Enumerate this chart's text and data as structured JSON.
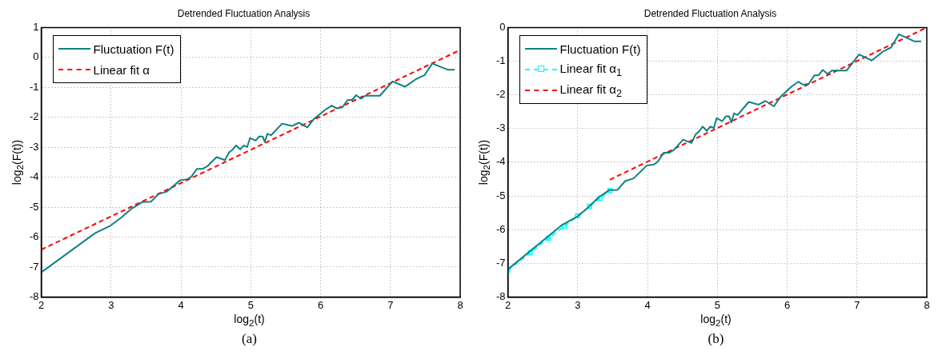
{
  "chart_data": [
    {
      "type": "line",
      "title": "Detrended Fluctuation Analysis",
      "xlabel": "log$_{2}$(t)",
      "ylabel": "log$_{2}$(F(t))",
      "xlim": [
        2,
        8
      ],
      "xticks": [
        2,
        3,
        4,
        5,
        6,
        7,
        8
      ],
      "ylim": [
        -8,
        1
      ],
      "yticks": [
        -8,
        -7,
        -6,
        -5,
        -4,
        -3,
        -2,
        -1,
        0,
        1
      ],
      "grid": true,
      "legend": "top left",
      "annotations": [
        "(a)"
      ],
      "series": [
        {
          "name": "Fluctuation F(t)",
          "color": "#108080",
          "line_style": "solid",
          "x": [
            2,
            2.77,
            2.99,
            3.14,
            3.3,
            3.45,
            3.57,
            3.68,
            3.8,
            3.99,
            4.09,
            4.15,
            4.23,
            4.31,
            4.38,
            4.51,
            4.63,
            4.69,
            4.74,
            4.79,
            4.85,
            4.9,
            4.95,
            4.99,
            5.07,
            5.12,
            5.17,
            5.2,
            5.24,
            5.29,
            5.45,
            5.59,
            5.69,
            5.81,
            5.9,
            6.06,
            6.16,
            6.23,
            6.31,
            6.39,
            6.45,
            6.51,
            6.58,
            6.64,
            6.85,
            7.03,
            7.21,
            7.37,
            7.49,
            7.6,
            7.82,
            7.92
          ],
          "values": [
            -7.18,
            -5.87,
            -5.62,
            -5.36,
            -5.04,
            -4.83,
            -4.82,
            -4.56,
            -4.48,
            -4.1,
            -4.07,
            -3.98,
            -3.72,
            -3.72,
            -3.63,
            -3.33,
            -3.43,
            -3.17,
            -3.08,
            -2.94,
            -3.07,
            -2.94,
            -2.99,
            -2.69,
            -2.78,
            -2.64,
            -2.64,
            -2.82,
            -2.55,
            -2.6,
            -2.21,
            -2.29,
            -2.18,
            -2.34,
            -2.07,
            -1.76,
            -1.61,
            -1.7,
            -1.67,
            -1.42,
            -1.42,
            -1.26,
            -1.38,
            -1.28,
            -1.28,
            -0.8,
            -0.98,
            -0.72,
            -0.59,
            -0.2,
            -0.41,
            -0.41
          ]
        },
        {
          "name": "Linear fit α",
          "color": "#ff0000",
          "line_style": "dashed",
          "x": [
            2,
            8
          ],
          "values": [
            -6.42,
            0.25
          ]
        }
      ]
    },
    {
      "type": "line",
      "title": "Detrended Fluctuation Analysis",
      "xlabel": "log$_{2}$(t)",
      "ylabel": "log$_{2}$(F(t))",
      "xlim": [
        2,
        8
      ],
      "xticks": [
        2,
        3,
        4,
        5,
        6,
        7,
        8
      ],
      "ylim": [
        -8,
        0
      ],
      "yticks": [
        -8,
        -7,
        -6,
        -5,
        -4,
        -3,
        -2,
        -1,
        0
      ],
      "grid": true,
      "legend": "top left",
      "annotations": [
        "(b)"
      ],
      "series": [
        {
          "name": "Fluctuation F(t)",
          "color": "#108080",
          "line_style": "solid",
          "x": [
            2,
            2.77,
            2.99,
            3.14,
            3.3,
            3.45,
            3.57,
            3.68,
            3.8,
            3.99,
            4.09,
            4.15,
            4.23,
            4.31,
            4.38,
            4.51,
            4.63,
            4.69,
            4.74,
            4.79,
            4.85,
            4.9,
            4.95,
            4.99,
            5.07,
            5.12,
            5.17,
            5.2,
            5.24,
            5.29,
            5.45,
            5.59,
            5.69,
            5.81,
            5.9,
            6.06,
            6.16,
            6.23,
            6.31,
            6.39,
            6.45,
            6.51,
            6.58,
            6.64,
            6.85,
            7.03,
            7.21,
            7.37,
            7.49,
            7.6,
            7.82,
            7.92
          ],
          "values": [
            -7.18,
            -5.87,
            -5.62,
            -5.36,
            -5.04,
            -4.83,
            -4.82,
            -4.56,
            -4.48,
            -4.1,
            -4.07,
            -3.98,
            -3.72,
            -3.72,
            -3.63,
            -3.33,
            -3.43,
            -3.17,
            -3.08,
            -2.94,
            -3.07,
            -2.94,
            -2.99,
            -2.69,
            -2.78,
            -2.64,
            -2.64,
            -2.82,
            -2.55,
            -2.6,
            -2.21,
            -2.29,
            -2.18,
            -2.34,
            -2.07,
            -1.76,
            -1.61,
            -1.7,
            -1.67,
            -1.42,
            -1.42,
            -1.26,
            -1.38,
            -1.28,
            -1.28,
            -0.8,
            -0.98,
            -0.72,
            -0.59,
            -0.2,
            -0.41,
            -0.41
          ]
        },
        {
          "name": "Linear fit α$_{1}$",
          "color": "#00ffff",
          "line_style": "dashed",
          "marker": "square",
          "x": [
            2,
            2.32,
            2.58,
            2.81,
            3,
            3.17,
            3.32,
            3.46
          ],
          "values": [
            -7.2,
            -6.69,
            -6.26,
            -5.9,
            -5.59,
            -5.31,
            -5.07,
            -4.84
          ]
        },
        {
          "name": "Linear fit α$_{2}$",
          "color": "#ff0000",
          "line_style": "dashed",
          "x": [
            3.46,
            8
          ],
          "values": [
            -4.52,
            0
          ]
        }
      ]
    }
  ]
}
